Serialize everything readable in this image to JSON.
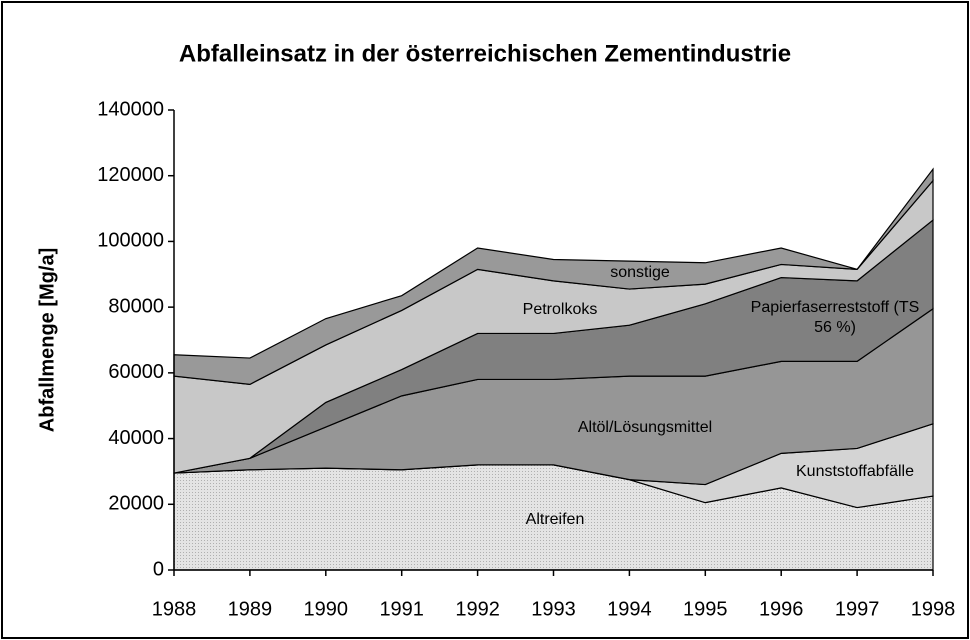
{
  "chart_data": {
    "type": "stacked_area",
    "title": "Abfalleinsatz in der österreichischen Zementindustrie",
    "y_label": "Abfallmenge [Mg/a]",
    "categories": [
      "1988",
      "1989",
      "1990",
      "1991",
      "1992",
      "1993",
      "1994",
      "1995",
      "1996",
      "1997",
      "1998"
    ],
    "series": [
      {
        "name": "Altreifen",
        "color": "#e4e4e4",
        "values": [
          29500,
          30500,
          31000,
          30500,
          32000,
          32000,
          27500,
          20500,
          25000,
          19000,
          22500
        ]
      },
      {
        "name": "Kunststoffabfälle",
        "color": "#d4d4d4",
        "values": [
          0,
          0,
          0,
          0,
          0,
          0,
          0,
          5500,
          10500,
          18000,
          22000
        ]
      },
      {
        "name": "Altöl/Lösungsmittel",
        "color": "#969696",
        "values": [
          0,
          3500,
          12500,
          22500,
          26000,
          26000,
          31500,
          33000,
          28000,
          26500,
          35000
        ]
      },
      {
        "name": "Papierfaserreststoff (TS 56 %)",
        "color": "#808080",
        "values": [
          0,
          0,
          7500,
          8000,
          14000,
          14000,
          15500,
          22000,
          25500,
          24500,
          27000
        ]
      },
      {
        "name": "Petrolkoks",
        "color": "#c8c8c8",
        "values": [
          29500,
          22500,
          17500,
          18000,
          19500,
          16000,
          11000,
          6000,
          4000,
          3500,
          12000
        ]
      },
      {
        "name": "sonstige",
        "color": "#999999",
        "values": [
          6500,
          8000,
          8000,
          4500,
          6500,
          6500,
          8500,
          6500,
          5000,
          0,
          3500
        ]
      }
    ],
    "ylim": [
      0,
      140000
    ],
    "yticks": [
      0,
      20000,
      40000,
      60000,
      80000,
      100000,
      120000,
      140000
    ]
  }
}
